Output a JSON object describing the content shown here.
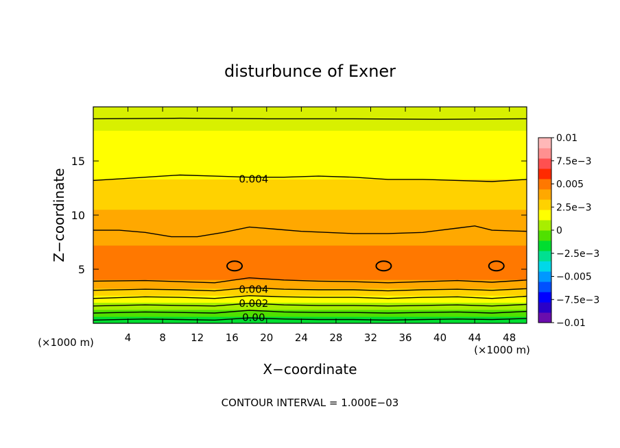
{
  "chart_data": {
    "type": "heatmap",
    "title": "disturbunce of Exner",
    "xlabel": "X−coordinate",
    "ylabel": "Z−coordinate",
    "x_unit_left": "(×1000 m)",
    "x_unit_right": "(×1000 m)",
    "footer": "CONTOUR INTERVAL = 1.000E−03",
    "xlim": [
      0,
      50
    ],
    "ylim": [
      0,
      20
    ],
    "xticks": [
      4,
      8,
      12,
      16,
      20,
      24,
      28,
      32,
      36,
      40,
      44,
      48
    ],
    "yticks": [
      5,
      10,
      15
    ],
    "zlim": [
      -0.01,
      0.01
    ],
    "colorbar": {
      "ticks": [
        {
          "value": 0.01,
          "label": "0.01"
        },
        {
          "value": 0.0075,
          "label": "7.5e−3"
        },
        {
          "value": 0.005,
          "label": "0.005"
        },
        {
          "value": 0.0025,
          "label": "2.5e−3"
        },
        {
          "value": 0,
          "label": "0"
        },
        {
          "value": -0.0025,
          "label": "−2.5e−3"
        },
        {
          "value": -0.005,
          "label": "−0.005"
        },
        {
          "value": -0.0075,
          "label": "−7.5e−3"
        },
        {
          "value": -0.01,
          "label": "−0.01"
        }
      ],
      "colors_low_to_high": [
        "#6a0dad",
        "#2a00c8",
        "#0000ff",
        "#0050ff",
        "#0098ff",
        "#00d8e8",
        "#00e090",
        "#00dd30",
        "#50e000",
        "#a8ee00",
        "#ffff00",
        "#ffd200",
        "#ffa800",
        "#ff7800",
        "#ff2a00",
        "#ff5050",
        "#ff9090",
        "#ffb8b8"
      ]
    },
    "contour_labels": [
      {
        "text": "0.004",
        "x": 18.5,
        "z": 13.4
      },
      {
        "text": "0.004",
        "x": 18.5,
        "z": 3.2
      },
      {
        "text": "0.002",
        "x": 18.5,
        "z": 1.9
      },
      {
        "text": "0.00",
        "x": 18.5,
        "z": 0.6
      }
    ],
    "bands_bottom_to_top": [
      {
        "z0": 0.0,
        "z1": 0.6,
        "color": "#00dd30"
      },
      {
        "z0": 0.6,
        "z1": 1.25,
        "color": "#50e000"
      },
      {
        "z0": 1.25,
        "z1": 1.9,
        "color": "#a8ee00"
      },
      {
        "z0": 1.9,
        "z1": 2.55,
        "color": "#ffff00"
      },
      {
        "z0": 2.55,
        "z1": 3.2,
        "color": "#ffd200"
      },
      {
        "z0": 3.2,
        "z1": 4.0,
        "color": "#ffa800"
      },
      {
        "z0": 4.0,
        "z1": 7.2,
        "color": "#ff7800"
      },
      {
        "z0": 7.2,
        "z1": 10.5,
        "color": "#ffa800"
      },
      {
        "z0": 10.5,
        "z1": 13.3,
        "color": "#ffd200"
      },
      {
        "z0": 13.3,
        "z1": 17.8,
        "color": "#ffff00"
      },
      {
        "z0": 17.8,
        "z1": 19.8,
        "color": "#d8f000"
      }
    ],
    "contours": [
      {
        "x": [
          0,
          6,
          10,
          14,
          18,
          22,
          26,
          30,
          34,
          38,
          42,
          46,
          50
        ],
        "z": [
          0.3,
          0.4,
          0.35,
          0.3,
          0.5,
          0.4,
          0.35,
          0.35,
          0.3,
          0.35,
          0.4,
          0.35,
          0.45
        ]
      },
      {
        "x": [
          0,
          6,
          10,
          14,
          18,
          22,
          26,
          30,
          34,
          38,
          42,
          46,
          50
        ],
        "z": [
          0.95,
          1.05,
          1.0,
          0.95,
          1.2,
          1.05,
          1.0,
          1.0,
          0.95,
          1.0,
          1.05,
          0.95,
          1.1
        ]
      },
      {
        "x": [
          0,
          6,
          10,
          14,
          18,
          22,
          26,
          30,
          34,
          38,
          42,
          46,
          50
        ],
        "z": [
          1.6,
          1.7,
          1.65,
          1.6,
          1.85,
          1.7,
          1.65,
          1.65,
          1.6,
          1.65,
          1.7,
          1.6,
          1.75
        ]
      },
      {
        "x": [
          0,
          6,
          10,
          14,
          18,
          22,
          26,
          30,
          34,
          38,
          42,
          46,
          50
        ],
        "z": [
          2.3,
          2.45,
          2.4,
          2.3,
          2.55,
          2.45,
          2.4,
          2.4,
          2.3,
          2.4,
          2.45,
          2.3,
          2.5
        ]
      },
      {
        "x": [
          0,
          6,
          10,
          14,
          18,
          22,
          26,
          30,
          34,
          38,
          42,
          46,
          50
        ],
        "z": [
          3.05,
          3.15,
          3.1,
          3.0,
          3.3,
          3.15,
          3.1,
          3.1,
          3.0,
          3.1,
          3.15,
          3.05,
          3.2
        ]
      },
      {
        "x": [
          0,
          6,
          10,
          14,
          18,
          22,
          26,
          30,
          34,
          38,
          42,
          46,
          50
        ],
        "z": [
          3.9,
          3.95,
          3.85,
          3.75,
          4.2,
          4.0,
          3.9,
          3.85,
          3.75,
          3.85,
          3.95,
          3.8,
          4.0
        ]
      },
      {
        "x": [
          0,
          3,
          6,
          9,
          12,
          15,
          18,
          21,
          24,
          27,
          30,
          34,
          38,
          42,
          44,
          46,
          50
        ],
        "z": [
          8.6,
          8.6,
          8.4,
          8.0,
          8.0,
          8.4,
          8.9,
          8.7,
          8.5,
          8.4,
          8.3,
          8.3,
          8.4,
          8.8,
          9.0,
          8.6,
          8.5
        ]
      },
      {
        "x": [
          0,
          4,
          8,
          10,
          14,
          18,
          22,
          26,
          30,
          34,
          38,
          42,
          46,
          50
        ],
        "z": [
          13.2,
          13.4,
          13.6,
          13.7,
          13.6,
          13.5,
          13.5,
          13.6,
          13.5,
          13.3,
          13.3,
          13.2,
          13.1,
          13.3
        ]
      },
      {
        "x": [
          0,
          10,
          20,
          30,
          40,
          50
        ],
        "z": [
          18.9,
          18.95,
          18.9,
          18.9,
          18.85,
          18.9
        ]
      }
    ],
    "closed_contours": [
      {
        "x": 16.3,
        "z": 5.3
      },
      {
        "x": 33.5,
        "z": 5.3
      },
      {
        "x": 46.5,
        "z": 5.3
      }
    ]
  }
}
